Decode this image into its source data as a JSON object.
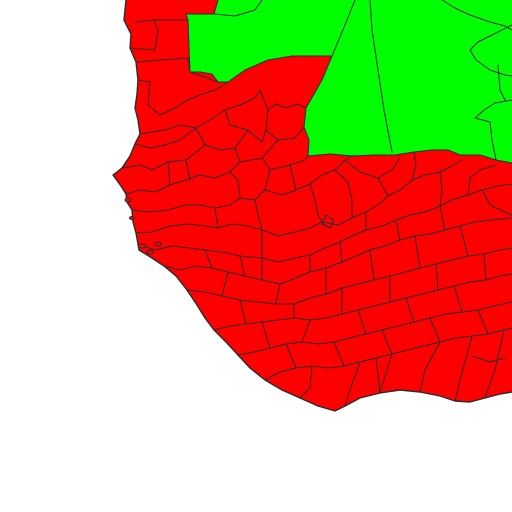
{
  "map": {
    "colors": {
      "background": "#ffffff",
      "region_a": "#ff0000",
      "region_b": "#00ff00",
      "border": "#2b2b2b"
    },
    "region_fill_names": [
      "red",
      "green"
    ]
  }
}
